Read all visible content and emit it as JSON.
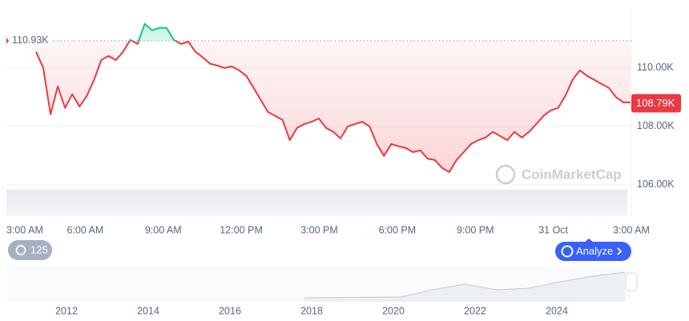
{
  "chart_data": {
    "type": "line",
    "values": [
      110.55,
      110.0,
      108.41,
      109.37,
      108.63,
      109.1,
      108.68,
      109.04,
      109.59,
      110.27,
      110.41,
      110.27,
      110.55,
      110.96,
      110.82,
      111.51,
      111.29,
      111.37,
      111.37,
      110.96,
      110.82,
      110.9,
      110.55,
      110.36,
      110.14,
      110.08,
      110.0,
      110.05,
      109.92,
      109.73,
      109.32,
      108.9,
      108.49,
      108.36,
      108.22,
      107.53,
      107.95,
      108.08,
      108.16,
      108.27,
      107.95,
      107.81,
      107.59,
      108.0,
      108.08,
      108.16,
      108.0,
      107.4,
      106.99,
      107.4,
      107.32,
      107.26,
      107.12,
      107.18,
      106.9,
      106.85,
      106.58,
      106.44,
      106.85,
      107.12,
      107.4,
      107.53,
      107.62,
      107.81,
      107.67,
      107.53,
      107.81,
      107.62,
      107.81,
      108.08,
      108.36,
      108.55,
      108.63,
      109.04,
      109.59,
      109.92,
      109.73,
      109.59,
      109.45,
      109.32,
      109.0,
      108.82,
      108.82
    ],
    "color_above": "#16c784",
    "color_below": "#ea3943",
    "baseline": {
      "value": 110.93,
      "label": "110.93K"
    },
    "last_price": {
      "value": 108.79,
      "label": "108.79K"
    },
    "ylim": [
      104.93,
      112.05
    ],
    "yticks": [
      {
        "value": 106,
        "label": "106.00K"
      },
      {
        "value": 108,
        "label": "108.00K"
      },
      {
        "value": 110,
        "label": "110.00K"
      }
    ],
    "grid": true,
    "xtick_labels": [
      "3:00 AM",
      "6:00 AM",
      "9:00 AM",
      "12:00 PM",
      "3:00 PM",
      "6:00 PM",
      "9:00 PM",
      "31 Oct",
      "3:00 AM"
    ],
    "watermark": "CoinMarketCap"
  },
  "navigator": {
    "xtick_labels": [
      2012,
      2014,
      2016,
      2018,
      2020,
      2022,
      2024
    ]
  },
  "controls": {
    "history_count": 125,
    "analyze_button": "Analyze"
  }
}
